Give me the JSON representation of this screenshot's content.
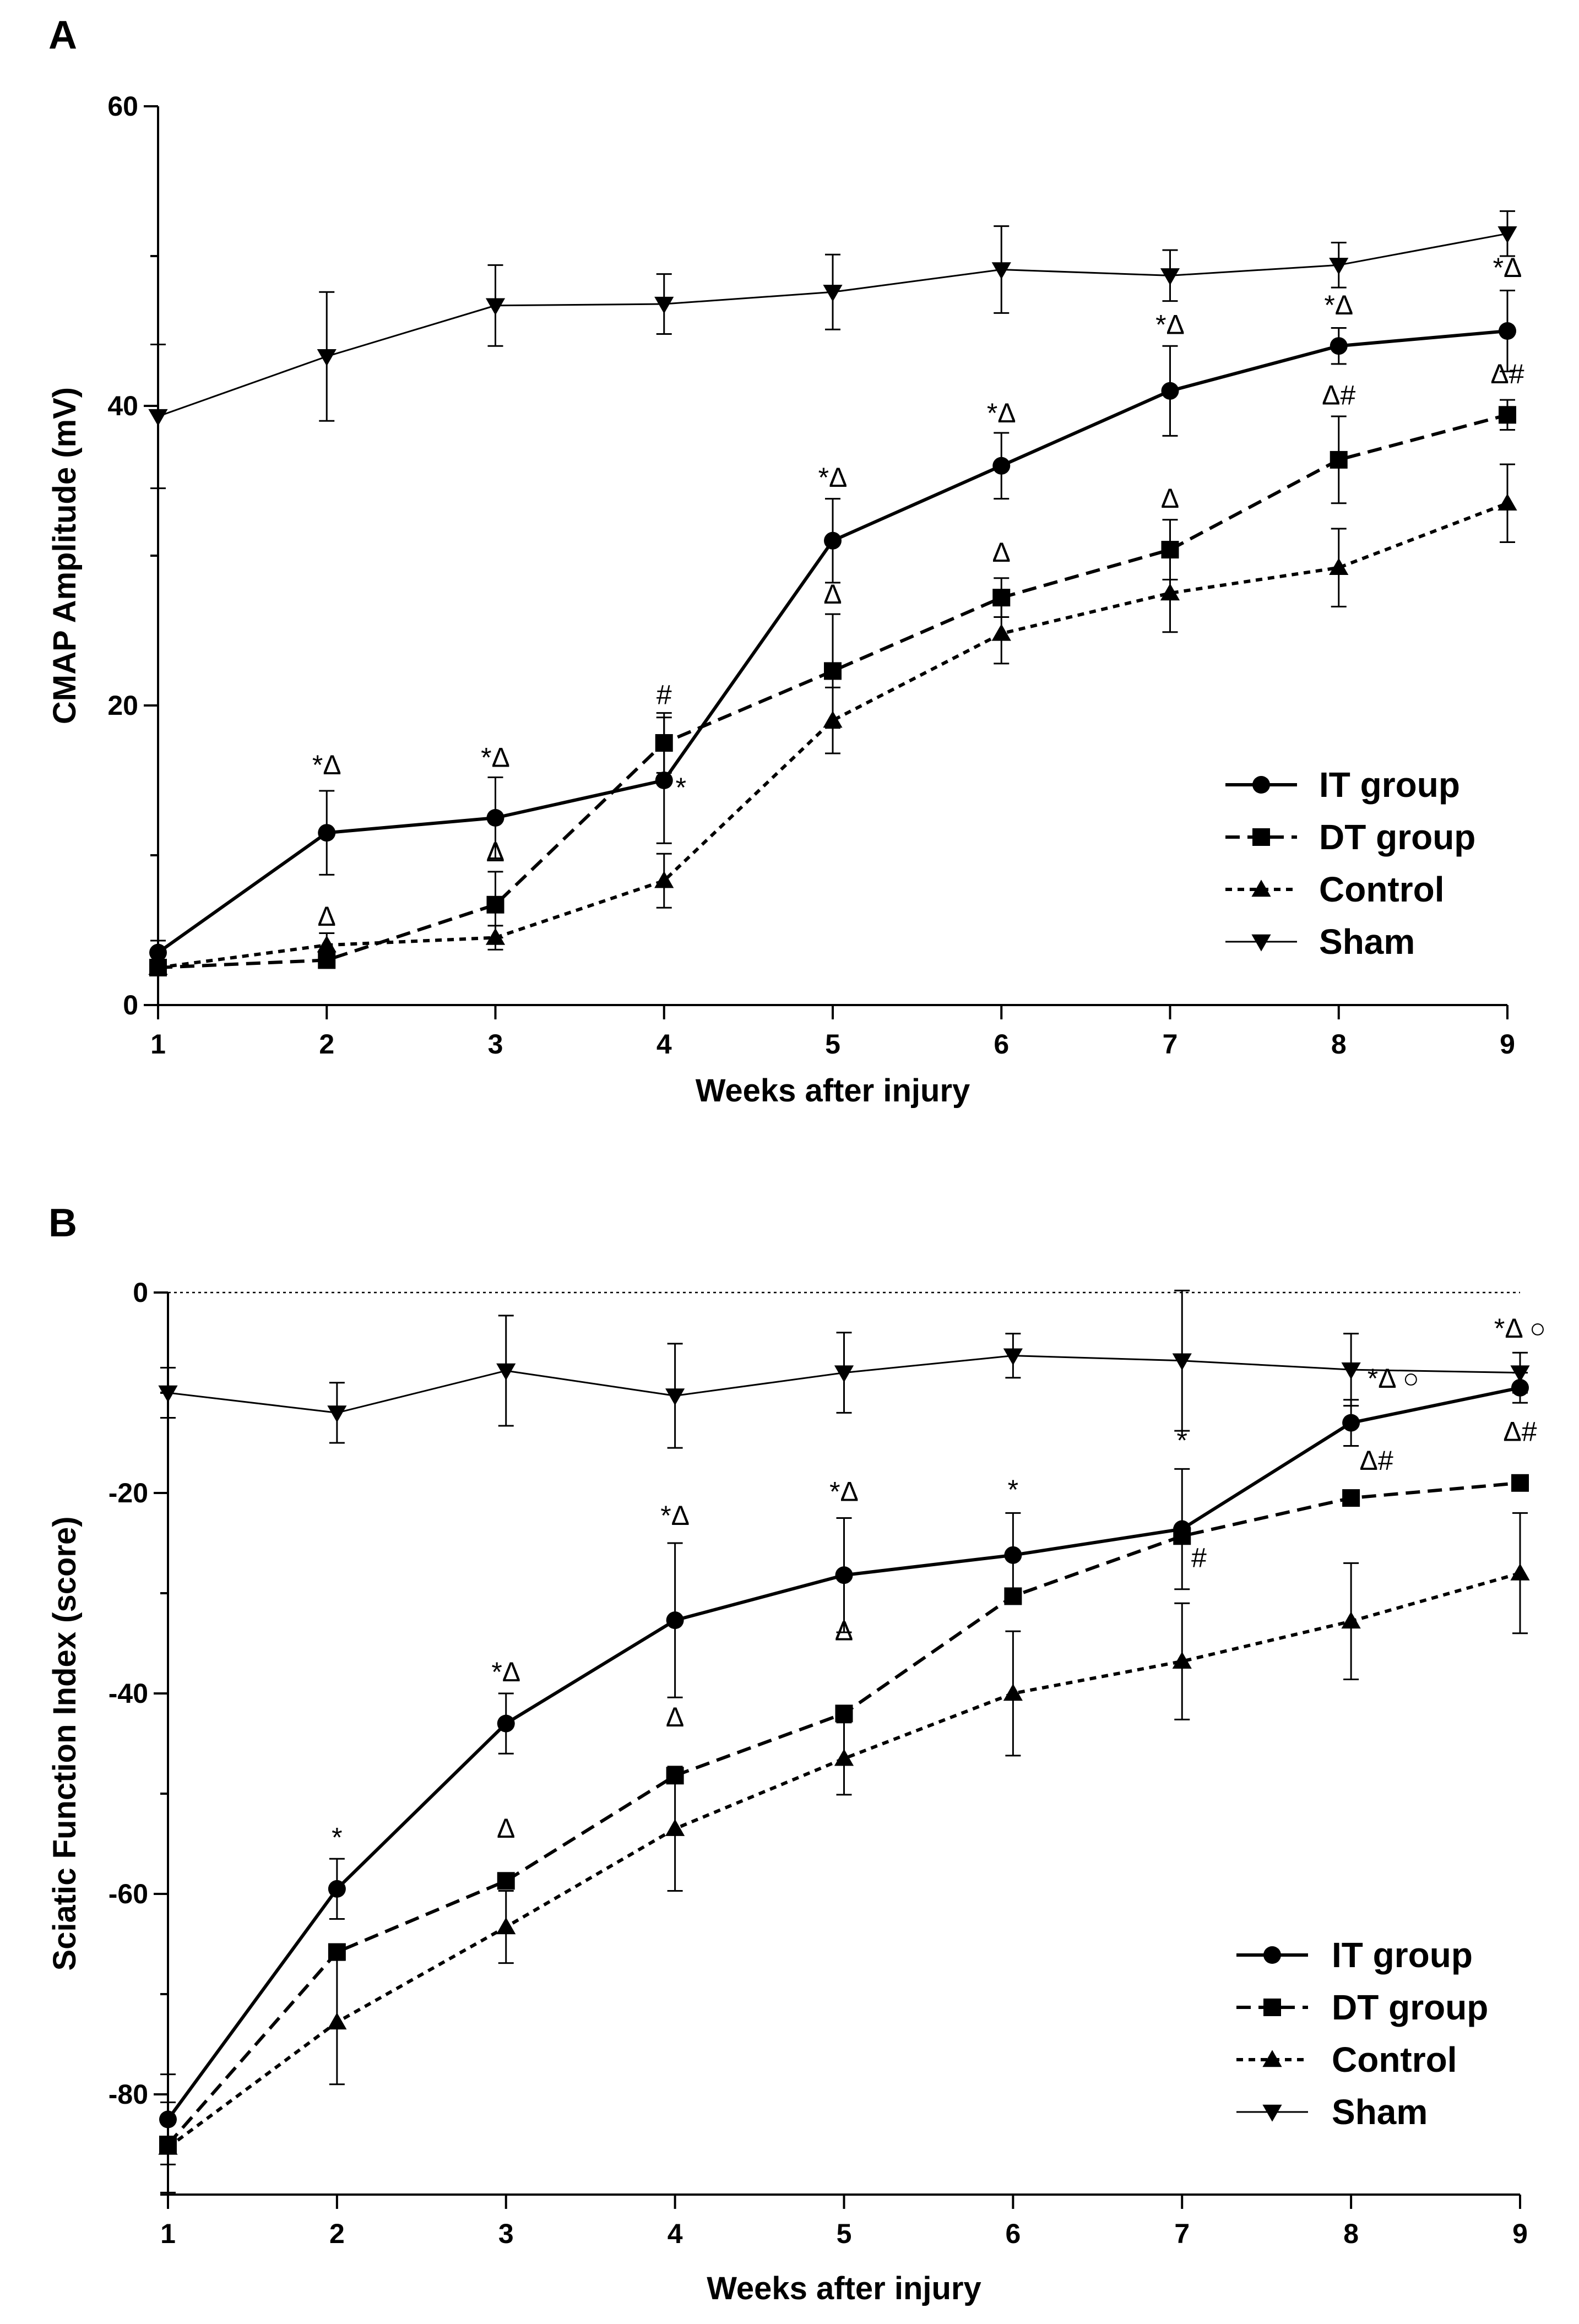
{
  "chart_data": [
    {
      "panel": "A",
      "type": "line",
      "xlabel": "Weeks after injury",
      "ylabel": "CMAP Amplitude (mV)",
      "xlim": [
        1,
        9
      ],
      "ylim": [
        0,
        60
      ],
      "xticks": [
        "1",
        "2",
        "3",
        "4",
        "5",
        "6",
        "7",
        "8",
        "9"
      ],
      "yticks": [
        "0",
        "20",
        "40",
        "60"
      ],
      "x": [
        1,
        2,
        3,
        4,
        5,
        6,
        7,
        8,
        9
      ],
      "series": [
        {
          "name": "IT group",
          "marker": "circle",
          "line": "solid-thick",
          "values": [
            3.5,
            11.5,
            12.5,
            15,
            31,
            36,
            41,
            44,
            45
          ],
          "errors": [
            0.8,
            2.8,
            2.7,
            4.2,
            2.8,
            2.2,
            3,
            1.2,
            2.7
          ]
        },
        {
          "name": "DT group",
          "marker": "square",
          "line": "dashed",
          "values": [
            2.5,
            3,
            6.7,
            17.5,
            22.3,
            27.2,
            30.4,
            36.4,
            39.4
          ],
          "errors": [
            0.5,
            0.5,
            2.2,
            2,
            3.8,
            1.3,
            2,
            2.9,
            1
          ]
        },
        {
          "name": "Control",
          "marker": "triangle-up",
          "line": "dotted",
          "values": [
            2.5,
            4,
            4.5,
            8.3,
            19,
            24.8,
            27.5,
            29.2,
            33.5
          ],
          "errors": [
            0.5,
            0.8,
            0.8,
            1.8,
            2.2,
            2,
            2.6,
            2.6,
            2.6
          ]
        },
        {
          "name": "Sham",
          "marker": "triangle-down",
          "line": "solid-thin",
          "values": [
            39.3,
            43.3,
            46.7,
            46.8,
            47.6,
            49.1,
            48.7,
            49.4,
            51.5
          ],
          "errors": [
            4.8,
            4.3,
            2.7,
            2,
            2.5,
            2.9,
            1.7,
            1.5,
            1.5
          ]
        }
      ],
      "annotations": [
        {
          "text": "*Δ",
          "x": 2,
          "y": 15.4
        },
        {
          "text": "Δ",
          "x": 2,
          "y": 5.3
        },
        {
          "text": "*Δ",
          "x": 3,
          "y": 15.9
        },
        {
          "text": "Δ",
          "x": 3,
          "y": 9.6
        },
        {
          "text": "#",
          "x": 4,
          "y": 20.1
        },
        {
          "text": "*",
          "x": 4.1,
          "y": 13.9
        },
        {
          "text": "*Δ",
          "x": 5,
          "y": 34.6
        },
        {
          "text": "Δ",
          "x": 5,
          "y": 26.8
        },
        {
          "text": "*Δ",
          "x": 6,
          "y": 38.9
        },
        {
          "text": "Δ",
          "x": 6,
          "y": 29.6
        },
        {
          "text": "*Δ",
          "x": 7,
          "y": 44.8
        },
        {
          "text": "Δ",
          "x": 7,
          "y": 33.2
        },
        {
          "text": "*Δ",
          "x": 8,
          "y": 46.1
        },
        {
          "text": "Δ#",
          "x": 8,
          "y": 40.1
        },
        {
          "text": "*Δ",
          "x": 9,
          "y": 48.6
        },
        {
          "text": "Δ#",
          "x": 9,
          "y": 41.5
        }
      ],
      "legend": "bottom-right"
    },
    {
      "panel": "B",
      "type": "line",
      "xlabel": "Weeks after injury",
      "ylabel": "Sciatic Function Index (score)",
      "xlim": [
        1,
        9
      ],
      "ylim": [
        -90,
        0
      ],
      "xticks": [
        "1",
        "2",
        "3",
        "4",
        "5",
        "6",
        "7",
        "8",
        "9"
      ],
      "yticks": [
        "0",
        "-20",
        "-40",
        "-60",
        "-80"
      ],
      "reference_line": 0,
      "x": [
        1,
        2,
        3,
        4,
        5,
        6,
        7,
        8,
        9
      ],
      "series": [
        {
          "name": "IT group",
          "marker": "circle",
          "line": "solid-thick",
          "values": [
            -82.5,
            -59.5,
            -43,
            -32.7,
            -28.2,
            -26.2,
            -23.6,
            -13,
            -9.5
          ],
          "errors": [
            4.5,
            3,
            3,
            7.7,
            5.7,
            4.2,
            6,
            2.3,
            1.5
          ]
        },
        {
          "name": "DT group",
          "marker": "square",
          "line": "dashed",
          "values": [
            -85,
            -65.8,
            -58.7,
            -48.2,
            -42,
            -30.3,
            -24.3,
            -20.5,
            -19
          ]
        },
        {
          "name": "Control",
          "marker": "triangle-up",
          "line": "dotted",
          "values": [
            -85.3,
            -72.8,
            -63.3,
            -53.5,
            -46.5,
            -40,
            -36.8,
            -32.8,
            -28
          ],
          "errors": [
            4.5,
            6.2,
            3.6,
            6.2,
            3.6,
            6.2,
            5.8,
            5.8,
            6
          ]
        },
        {
          "name": "Sham",
          "marker": "triangle-down",
          "line": "solid-thin",
          "values": [
            -10,
            -12,
            -7.8,
            -10.3,
            -8,
            -6.3,
            -6.8,
            -7.7,
            -8
          ],
          "errors": [
            2.5,
            3,
            5.5,
            5.2,
            4,
            2.2,
            7,
            3.6,
            2
          ]
        }
      ],
      "annotations": [
        {
          "text": "*",
          "x": 2,
          "y": -55.3
        },
        {
          "text": "*Δ",
          "x": 3,
          "y": -38.8
        },
        {
          "text": "Δ",
          "x": 3,
          "y": -54.4
        },
        {
          "text": "*Δ",
          "x": 4,
          "y": -23.2
        },
        {
          "text": "Δ",
          "x": 4,
          "y": -43.3
        },
        {
          "text": "*Δ",
          "x": 5,
          "y": -20.8
        },
        {
          "text": "Δ",
          "x": 5,
          "y": -34.7
        },
        {
          "text": "*",
          "x": 6,
          "y": -20.6
        },
        {
          "text": "*",
          "x": 7,
          "y": -15.7
        },
        {
          "text": "#",
          "x": 7.1,
          "y": -27.4
        },
        {
          "text": "*Δ ○",
          "x": 8.25,
          "y": -9.5
        },
        {
          "text": "Δ#",
          "x": 8.15,
          "y": -17.7
        },
        {
          "text": "*Δ ○",
          "x": 9,
          "y": -4.5
        },
        {
          "text": "Δ#",
          "x": 9,
          "y": -14.8
        }
      ],
      "legend": "bottom-right"
    }
  ]
}
